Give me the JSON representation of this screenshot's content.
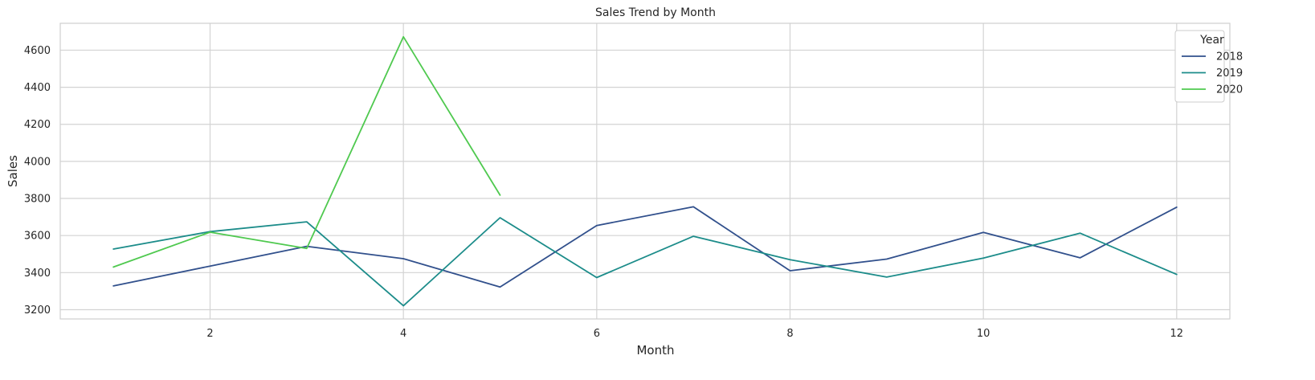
{
  "chart_data": {
    "type": "line",
    "title": "Sales Trend by Month",
    "xlabel": "Month",
    "ylabel": "Sales",
    "xlim": [
      0.45,
      12.55
    ],
    "ylim": [
      3150,
      4745
    ],
    "x_ticks": [
      2,
      4,
      6,
      8,
      10,
      12
    ],
    "y_ticks": [
      3200,
      3400,
      3600,
      3800,
      4000,
      4200,
      4400,
      4600
    ],
    "grid": true,
    "legend": {
      "title": "Year",
      "placement": "top-right"
    },
    "series": [
      {
        "name": "2018",
        "color": "#31508c",
        "x": [
          1,
          2,
          3,
          4,
          5,
          6,
          7,
          8,
          9,
          10,
          11,
          12
        ],
        "y": [
          3328,
          3435,
          3542,
          3475,
          3322,
          3654,
          3755,
          3410,
          3473,
          3617,
          3480,
          3753
        ]
      },
      {
        "name": "2019",
        "color": "#1c8c8a",
        "x": [
          1,
          2,
          3,
          4,
          5,
          6,
          7,
          8,
          9,
          10,
          11,
          12
        ],
        "y": [
          3527,
          3621,
          3674,
          3221,
          3696,
          3373,
          3596,
          3470,
          3376,
          3478,
          3613,
          3390
        ]
      },
      {
        "name": "2020",
        "color": "#4fc94f",
        "x": [
          1,
          2,
          3,
          4,
          5
        ],
        "y": [
          3430,
          3618,
          3530,
          4672,
          3818
        ]
      }
    ]
  }
}
